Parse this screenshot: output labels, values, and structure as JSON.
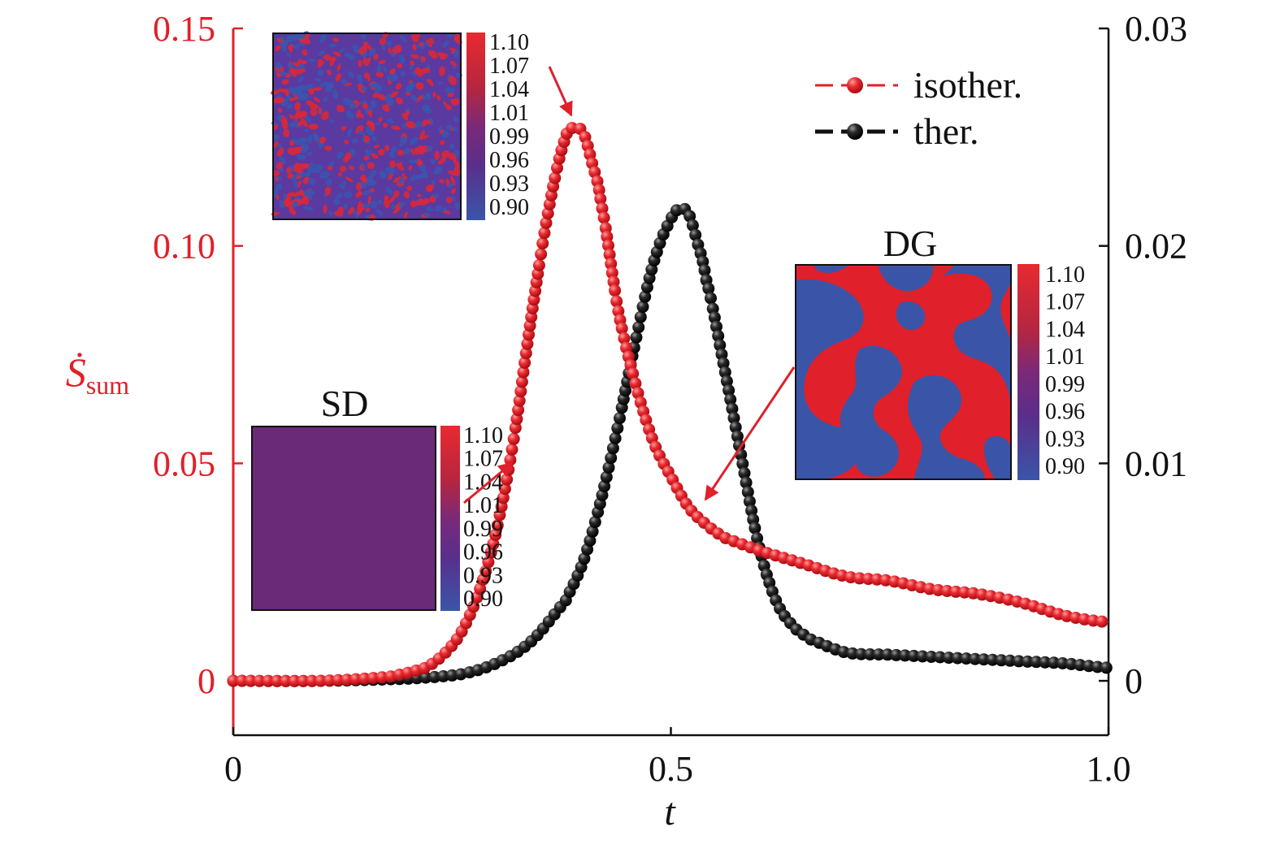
{
  "chart_data": {
    "type": "scatter",
    "title": "",
    "xlabel": "t",
    "ylabel_left": "Ṡ",
    "ylabel_left_sub": "sum",
    "ylabel_right": "",
    "xlim": [
      0,
      1.0
    ],
    "ylim_left": [
      -0.0125,
      0.15
    ],
    "ylim_right": [
      -0.0025,
      0.03
    ],
    "x_ticks": [
      "0",
      "0.5",
      "1.0"
    ],
    "x_tick_values": [
      0,
      0.5,
      1.0
    ],
    "left_ticks": [
      "0",
      "0.05",
      "0.10",
      "0.15"
    ],
    "left_tick_values": [
      0,
      0.05,
      0.1,
      0.15
    ],
    "right_ticks": [
      "0",
      "0.01",
      "0.02",
      "0.03"
    ],
    "right_tick_values": [
      0,
      0.01,
      0.02,
      0.03
    ],
    "legend_position": "top-right",
    "series": [
      {
        "name": "isother.",
        "axis": "left",
        "color": "#e0202a",
        "x": [
          0,
          0.1,
          0.18,
          0.22,
          0.24,
          0.26,
          0.28,
          0.3,
          0.32,
          0.34,
          0.36,
          0.38,
          0.39,
          0.4,
          0.41,
          0.42,
          0.44,
          0.46,
          0.48,
          0.5,
          0.52,
          0.54,
          0.56,
          0.6,
          0.65,
          0.7,
          0.75,
          0.8,
          0.85,
          0.9,
          0.95,
          1.0
        ],
        "y": [
          0,
          0,
          0.001,
          0.003,
          0.006,
          0.011,
          0.02,
          0.034,
          0.055,
          0.083,
          0.108,
          0.125,
          0.127,
          0.126,
          0.119,
          0.11,
          0.085,
          0.068,
          0.055,
          0.047,
          0.04,
          0.036,
          0.033,
          0.03,
          0.027,
          0.024,
          0.023,
          0.021,
          0.02,
          0.018,
          0.015,
          0.0135
        ]
      },
      {
        "name": "ther.",
        "axis": "right",
        "color": "#111111",
        "x": [
          0,
          0.1,
          0.2,
          0.26,
          0.3,
          0.34,
          0.38,
          0.4,
          0.42,
          0.44,
          0.46,
          0.48,
          0.5,
          0.51,
          0.52,
          0.53,
          0.54,
          0.56,
          0.58,
          0.6,
          0.62,
          0.64,
          0.66,
          0.7,
          0.75,
          0.8,
          0.85,
          0.9,
          0.95,
          1.0
        ],
        "y": [
          0,
          0,
          0.0001,
          0.0003,
          0.0008,
          0.0018,
          0.0037,
          0.0055,
          0.0083,
          0.0118,
          0.0157,
          0.0192,
          0.0212,
          0.0217,
          0.0215,
          0.0202,
          0.0185,
          0.0146,
          0.0104,
          0.0063,
          0.0037,
          0.0025,
          0.0019,
          0.0013,
          0.0012,
          0.0011,
          0.001,
          0.0009,
          0.0008,
          0.0006
        ]
      }
    ],
    "insets": [
      {
        "name": "top-left",
        "title": "",
        "pattern": "fine-spots",
        "colorbar_labels": [
          "1.10",
          "1.07",
          "1.04",
          "1.01",
          "0.99",
          "0.96",
          "0.93",
          "0.90"
        ],
        "arrow_target_series": "isother.",
        "arrow_target_x": 0.39
      },
      {
        "name": "SD",
        "title": "SD",
        "pattern": "uniform",
        "colorbar_labels": [
          "1.10",
          "1.07",
          "1.04",
          "1.01",
          "0.99",
          "0.96",
          "0.93",
          "0.90"
        ],
        "arrow_target_series": "isother.",
        "arrow_target_x": 0.32
      },
      {
        "name": "DG",
        "title": "DG",
        "pattern": "coarse-domains",
        "colorbar_labels": [
          "1.10",
          "1.07",
          "1.04",
          "1.01",
          "0.99",
          "0.96",
          "0.93",
          "0.90"
        ],
        "arrow_target_series": "isother.",
        "arrow_target_x": 0.54
      }
    ]
  },
  "colors": {
    "red": "#e0202a",
    "black": "#111111",
    "blue": "#3a4fa6",
    "purple": "#6a2a78"
  }
}
